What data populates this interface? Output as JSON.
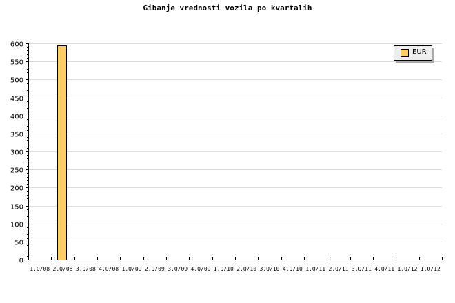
{
  "chart_data": {
    "type": "bar",
    "title": "Gibanje vrednosti vozila po kvartalih",
    "xlabel": "",
    "ylabel": "",
    "ylim": [
      0,
      600
    ],
    "yticks": [
      0,
      50,
      100,
      150,
      200,
      250,
      300,
      350,
      400,
      450,
      500,
      550,
      600
    ],
    "grid": true,
    "legend_position": "top-right",
    "categories": [
      "1.Q/08",
      "2.Q/08",
      "3.Q/08",
      "4.Q/08",
      "1.Q/09",
      "2.Q/09",
      "3.Q/09",
      "4.Q/09",
      "1.Q/10",
      "2.Q/10",
      "3.Q/10",
      "4.Q/10",
      "1.Q/11",
      "2.Q/11",
      "3.Q/11",
      "4.Q/11",
      "1.Q/12",
      "1.Q/12"
    ],
    "series": [
      {
        "name": "EUR",
        "color": "#ffcc66",
        "values": [
          0,
          595,
          0,
          0,
          0,
          0,
          0,
          0,
          0,
          0,
          0,
          0,
          0,
          0,
          0,
          0,
          0,
          0
        ]
      }
    ]
  }
}
